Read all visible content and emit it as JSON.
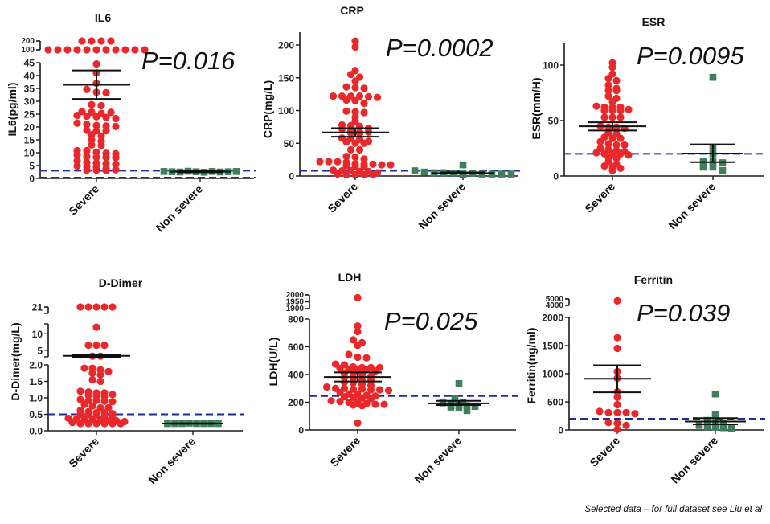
{
  "footnote": "Selected data – for full dataset see Liu et al",
  "colors": {
    "severe": "#e8282a",
    "non_severe": "#3f7f5d",
    "reference_line": "#1f2a9c",
    "axis": "#1a1a1a",
    "mean_bar": "#111111"
  },
  "chart_data": [
    {
      "type": "scatter",
      "title": "IL6",
      "ylabel": "IL6(pg/ml)",
      "xlabel": "",
      "categories": [
        "Severe",
        "Non severe"
      ],
      "p_value": "P=0.016",
      "y_segments": [
        {
          "range": [
            0,
            45
          ],
          "ticks": [
            "0",
            "5",
            "10",
            "15",
            "20",
            "25",
            "30",
            "35",
            "40",
            "45"
          ]
        },
        {
          "range": [
            100,
            200
          ],
          "ticks": [
            "100",
            "200"
          ]
        }
      ],
      "reference_lines": [
        3.0,
        0.3
      ],
      "series": [
        {
          "name": "Severe",
          "marker": "circle",
          "mean": 36.4,
          "sem_upper": 42.0,
          "sem_lower": 30.9,
          "values": [
            200,
            200,
            200,
            200,
            100,
            100,
            100,
            100,
            100,
            100,
            100,
            100,
            100,
            100,
            100,
            44.5,
            41,
            37,
            34.6,
            33.5,
            33.3,
            28.7,
            28.3,
            26,
            25.8,
            25.3,
            25.7,
            24.5,
            24.2,
            24,
            23.7,
            23.3,
            21.5,
            21,
            20.6,
            20.4,
            20.2,
            18.7,
            18.5,
            18.5,
            17,
            16.5,
            15,
            14.5,
            13,
            12.8,
            10.8,
            10.8,
            10.2,
            9.8,
            9.6,
            9.2,
            8.5,
            8.3,
            8.3,
            8.1,
            6.8,
            6.2,
            6,
            5.8,
            5.5,
            4.8,
            4.6,
            4.4,
            3.8,
            3.4,
            3.2,
            3.2,
            3.1
          ]
        },
        {
          "name": "Non severe",
          "marker": "square",
          "mean": 2.6,
          "sem_upper": 2.8,
          "sem_lower": 2.4,
          "values": [
            2.7,
            2.6,
            2.5,
            2.8,
            2.6,
            2.4,
            2.7,
            2.5,
            2.6,
            2.7
          ]
        }
      ]
    },
    {
      "type": "scatter",
      "title": "CRP",
      "ylabel": "CRP(mg/L)",
      "xlabel": "",
      "categories": [
        "Severe",
        "Non severe"
      ],
      "p_value": "P=0.0002",
      "y_segments": [
        {
          "range": [
            0,
            220
          ],
          "ticks": [
            "0",
            "50",
            "100",
            "150",
            "200"
          ]
        }
      ],
      "reference_lines": [
        8
      ],
      "series": [
        {
          "name": "Severe",
          "marker": "circle",
          "mean": 66.5,
          "sem_upper": 73,
          "sem_lower": 60,
          "values": [
            206,
            197,
            161,
            155,
            151,
            145,
            136,
            135,
            134,
            122,
            122,
            122,
            122,
            121,
            120,
            116,
            115,
            111,
            99,
            98,
            97,
            90,
            84,
            78,
            77,
            76,
            73,
            72,
            68,
            67,
            67,
            66,
            65,
            58,
            57,
            56,
            53,
            52,
            50,
            50,
            40,
            40,
            30,
            29,
            26,
            22,
            22,
            22,
            21,
            19,
            18,
            18,
            17,
            17,
            16,
            15,
            14,
            9,
            8,
            8,
            7,
            7,
            5,
            3,
            2,
            2,
            2,
            2
          ]
        },
        {
          "name": "Non severe",
          "marker": "square",
          "mean": 4.5,
          "sem_upper": 5.5,
          "sem_lower": 3.5,
          "values": [
            17,
            8,
            6,
            5,
            5,
            4,
            4,
            4,
            3,
            3,
            3,
            3,
            2
          ]
        }
      ]
    },
    {
      "type": "scatter",
      "title": "ESR",
      "ylabel": "ESR(mm/H)",
      "xlabel": "",
      "categories": [
        "Severe",
        "Non severe"
      ],
      "p_value": "P=0.0095",
      "y_segments": [
        {
          "range": [
            0,
            120
          ],
          "ticks": [
            "0",
            "50",
            "100"
          ]
        }
      ],
      "reference_lines": [
        20
      ],
      "series": [
        {
          "name": "Severe",
          "marker": "circle",
          "mean": 44.8,
          "sem_upper": 48.5,
          "sem_lower": 41,
          "values": [
            102,
            98,
            92,
            88,
            86,
            82,
            79,
            77,
            77,
            72,
            70,
            67,
            63,
            62,
            62,
            62,
            60,
            59,
            59,
            59,
            53,
            53,
            53,
            45,
            44,
            44,
            43,
            39,
            38,
            35,
            34,
            34,
            31,
            29,
            28,
            28,
            25,
            24,
            23,
            22,
            21,
            20,
            20,
            20,
            19,
            17,
            16,
            13,
            11,
            9,
            8,
            7,
            5
          ]
        },
        {
          "name": "Non severe",
          "marker": "square",
          "mean": 20.3,
          "sem_upper": 28.5,
          "sem_lower": 12.5,
          "values": [
            89,
            26,
            20,
            13,
            13,
            12,
            8,
            8,
            5
          ]
        }
      ]
    },
    {
      "type": "scatter",
      "title": "D-Dimer",
      "ylabel": "D-Dimer(mg/L)",
      "xlabel": "",
      "categories": [
        "Severe",
        "Non severe"
      ],
      "p_value": "",
      "y_segments": [
        {
          "range": [
            0,
            2.0
          ],
          "ticks": [
            "0.0",
            "0.5",
            "1.0",
            "1.5",
            "2.0"
          ]
        },
        {
          "range": [
            3,
            13
          ],
          "ticks": [
            "5",
            "10"
          ]
        },
        {
          "range": [
            20,
            21
          ],
          "ticks": [
            "21"
          ]
        }
      ],
      "reference_lines": [
        0.5
      ],
      "series": [
        {
          "name": "Severe",
          "marker": "circle",
          "mean": 3.3,
          "sem_upper": 3.6,
          "sem_lower": 3.0,
          "values": [
            21,
            21,
            21,
            21,
            21,
            12,
            6.5,
            6.5,
            6.5,
            3.2,
            3.2,
            1.9,
            1.9,
            1.85,
            1.8,
            1.75,
            1.7,
            1.55,
            1.5,
            1.2,
            1.18,
            1.15,
            1.15,
            1.1,
            1.08,
            1.05,
            1.05,
            0.95,
            0.92,
            0.92,
            0.9,
            0.88,
            0.8,
            0.75,
            0.7,
            0.7,
            0.62,
            0.58,
            0.55,
            0.55,
            0.52,
            0.5,
            0.5,
            0.48,
            0.45,
            0.4,
            0.38,
            0.35,
            0.35,
            0.35,
            0.33,
            0.3,
            0.3,
            0.28,
            0.25,
            0.22,
            0.22,
            0.22,
            0.22,
            0.22,
            0.22
          ]
        },
        {
          "name": "Non severe",
          "marker": "square",
          "mean": 0.22,
          "sem_upper": 0.23,
          "sem_lower": 0.21,
          "values": [
            0.22,
            0.22,
            0.22,
            0.23,
            0.22,
            0.22,
            0.22,
            0.22
          ]
        }
      ]
    },
    {
      "type": "scatter",
      "title": "LDH",
      "ylabel": "LDH(U/L)",
      "xlabel": "",
      "categories": [
        "Severe",
        "Non severe"
      ],
      "p_value": "P=0.025",
      "y_segments": [
        {
          "range": [
            0,
            800
          ],
          "ticks": [
            "0",
            "200",
            "400",
            "600",
            "800"
          ]
        },
        {
          "range": [
            1900,
            2000
          ],
          "ticks": [
            "1900",
            "1950",
            "2000"
          ]
        }
      ],
      "reference_lines": [
        245
      ],
      "series": [
        {
          "name": "Severe",
          "marker": "circle",
          "mean": 382,
          "sem_upper": 415,
          "sem_lower": 350,
          "values": [
            1980,
            750,
            710,
            650,
            630,
            610,
            545,
            525,
            520,
            475,
            470,
            455,
            450,
            450,
            450,
            445,
            440,
            440,
            435,
            425,
            410,
            410,
            400,
            385,
            380,
            375,
            360,
            355,
            345,
            340,
            330,
            320,
            310,
            300,
            300,
            295,
            295,
            290,
            290,
            285,
            270,
            260,
            255,
            250,
            245,
            240,
            235,
            230,
            225,
            210,
            205,
            200,
            195,
            190,
            185,
            185,
            180,
            175,
            50
          ]
        },
        {
          "name": "Non severe",
          "marker": "square",
          "mean": 192,
          "sem_upper": 210,
          "sem_lower": 180,
          "values": [
            335,
            225,
            200,
            195,
            190,
            180,
            175,
            170,
            165,
            160,
            140
          ]
        }
      ]
    },
    {
      "type": "scatter",
      "title": "Ferritin",
      "ylabel": "Ferritin(ng/ml)",
      "xlabel": "",
      "categories": [
        "Severe",
        "Non severe"
      ],
      "p_value": "P=0.039",
      "y_segments": [
        {
          "range": [
            0,
            2000
          ],
          "ticks": [
            "0",
            "500",
            "1000",
            "1500",
            "2000"
          ]
        },
        {
          "range": [
            4000,
            5000
          ],
          "ticks": [
            "4000",
            "5000"
          ]
        }
      ],
      "reference_lines": [
        200
      ],
      "series": [
        {
          "name": "Severe",
          "marker": "circle",
          "mean": 910,
          "sem_upper": 1150,
          "sem_lower": 670,
          "values": [
            4700,
            1640,
            1450,
            1040,
            920,
            680,
            580,
            450,
            330,
            310,
            310,
            310,
            290,
            130,
            120,
            80,
            10
          ]
        },
        {
          "name": "Non severe",
          "marker": "square",
          "mean": 150,
          "sem_upper": 210,
          "sem_lower": 100,
          "values": [
            640,
            280,
            170,
            130,
            110,
            80,
            60,
            50,
            40,
            30
          ]
        }
      ]
    }
  ]
}
